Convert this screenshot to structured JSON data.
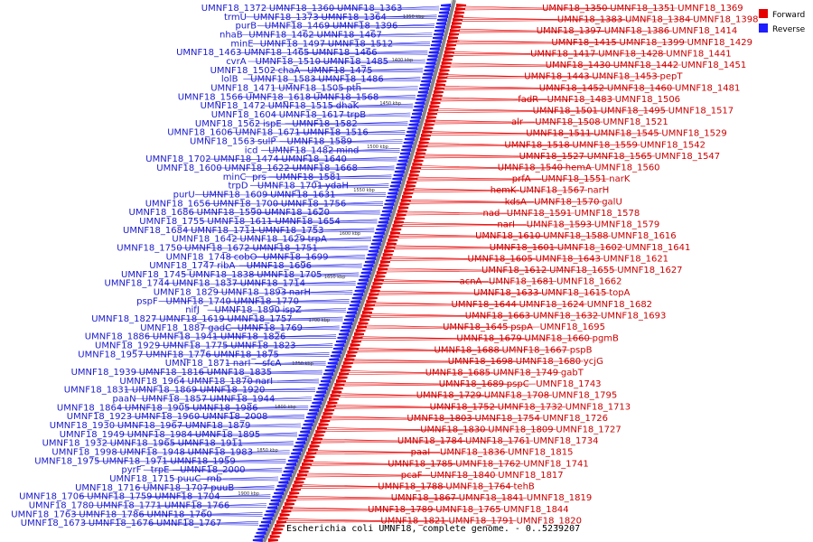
{
  "caption": "Escherichia coli UMNF18, complete genome. - 0..5239207",
  "legend": [
    {
      "label": "Forward",
      "color": "#e60000"
    },
    {
      "label": "Reverse",
      "color": "#1e1eff"
    }
  ],
  "kbp_ticks": [
    "1350 kbp",
    "1400 kbp",
    "1450 kbp",
    "1500 kbp",
    "1550 kbp",
    "1600 kbp",
    "1650 kbp",
    "1700 kbp",
    "1750 kbp",
    "1800 kbp",
    "1850 kbp",
    "1900 kbp"
  ],
  "forward_labels": [
    "UMNF18_1350",
    "UMNF18_1351",
    "UMNF18_1369",
    "UMNF18_1383",
    "UMNF18_1384",
    "UMNF18_1398",
    "UMNF18_1397",
    "UMNF18_1386",
    "UMNF18_1414",
    "UMNF18_1415",
    "UMNF18_1399",
    "UMNF18_1429",
    "UMNF18_1417",
    "UMNF18_1428",
    "UMNF18_1441",
    "UMNF18_1430",
    "UMNF18_1442",
    "UMNF18_1451",
    "UMNF18_1443",
    "UMNF18_1453",
    "pepT",
    "UMNF18_1452",
    "UMNF18_1460",
    "UMNF18_1481",
    "fadR",
    "UMNF18_1483",
    "UMNF18_1506",
    "UMNF18_1501",
    "UMNF18_1495",
    "UMNF18_1517",
    "alr",
    "UMNF18_1508",
    "UMNF18_1521",
    "UMNF18_1511",
    "UMNF18_1545",
    "UMNF18_1529",
    "UMNF18_1518",
    "UMNF18_1559",
    "UMNF18_1542",
    "UMNF18_1527",
    "UMNF18_1565",
    "UMNF18_1547",
    "UMNF18_1540",
    "hemA",
    "UMNF18_1560",
    "prfA",
    "UMNF18_1551",
    "narK",
    "hemK",
    "UMNF18_1567",
    "narH",
    "kdsA",
    "UMNF18_1570",
    "galU",
    "nad",
    "UMNF18_1591",
    "UMNF18_1578",
    "narI",
    "UMNF18_1593",
    "UMNF18_1579",
    "UMNF18_1610",
    "UMNF18_1588",
    "UMNF18_1616",
    "UMNF18_1601",
    "UMNF18_1602",
    "UMNF18_1641",
    "UMNF18_1605",
    "UMNF18_1643",
    "UMNF18_1621",
    "UMNF18_1612",
    "UMNF18_1655",
    "UMNF18_1627",
    "acnA",
    "UMNF18_1681",
    "UMNF18_1662",
    "UMNF18_1633",
    "UMNF18_1615",
    "topA",
    "UMNF18_1644",
    "UMNF18_1624",
    "UMNF18_1682",
    "UMNF18_1663",
    "UMNF18_1632",
    "UMNF18_1693",
    "UMNF18_1645",
    "pspA",
    "UMNF18_1695",
    "UMNF18_1679",
    "UMNF18_1660",
    "pgmB",
    "UMNF18_1688",
    "UMNF18_1667",
    "pspB",
    "UMNF18_1698",
    "UMNF18_1680",
    "ycjG",
    "UMNF18_1685",
    "UMNF18_1749",
    "gabT",
    "UMNF18_1689",
    "pspC",
    "UMNF18_1743",
    "UMNF18_1729",
    "UMNF18_1708",
    "UMNF18_1795",
    "UMNF18_1752",
    "UMNF18_1732",
    "UMNF18_1713",
    "UMNF18_1803",
    "UMNF18_1754",
    "UMNF18_1726",
    "UMNF18_1830",
    "UMNF18_1809",
    "UMNF18_1727",
    "UMNF18_1784",
    "UMNF18_1761",
    "UMNF18_1734",
    "paaI",
    "UMNF18_1836",
    "UMNF18_1815",
    "UMNF18_1785",
    "UMNF18_1762",
    "UMNF18_1741",
    "pcaF",
    "UMNF18_1840",
    "UMNF18_1817",
    "UMNF18_1788",
    "UMNF18_1764",
    "tehB",
    "UMNF18_1867",
    "UMNF18_1841",
    "UMNF18_1819",
    "UMNF18_1789",
    "UMNF18_1765",
    "UMNF18_1844",
    "UMNF18_1821",
    "UMNF18_1791",
    "UMNF18_1820"
  ],
  "reverse_labels": [
    "UMNF18_1363",
    "UMNF18_1360",
    "UMNF18_1372",
    "UMNF18_1364",
    "UMNF18_1373",
    "trmU",
    "UMNF18_1396",
    "UMNF18_1469",
    "purB",
    "UMNF18_1467",
    "UMNF18_1462",
    "nhaB",
    "UMNF18_1512",
    "UMNF18_1497",
    "minE",
    "UMNF18_1466",
    "UMNF18_1465",
    "UMNF18_1463",
    "UMNF18_1485",
    "UMNF18_1510",
    "cvrA",
    "UMNF18_1475",
    "chaA",
    "UMNF18_1502",
    "UMNF18_1486",
    "UMNF18_1583",
    "lolB",
    "pth",
    "UMNF18_1505",
    "UMNF18_1471",
    "UMNF18_1568",
    "UMNF18_1618",
    "UMNF18_1566",
    "dhaK",
    "UMNF18_1515",
    "UMNF18_1472",
    "trpB",
    "UMNF18_1617",
    "UMNF18_1604",
    "UMNF18_1582",
    "ispE",
    "UMNF18_1562",
    "UMNF18_1516",
    "UMNF18_1671",
    "UMNF18_1606",
    "UMNF18_1589",
    "sulP",
    "UMNF18_1563",
    "mind",
    "UMNF18_1482",
    "icd",
    "UMNF18_1640",
    "UMNF18_1474",
    "UMNF18_1702",
    "UMNF18_1668",
    "UMNF18_1622",
    "UMNF18_1600",
    "UMNF18_1581",
    "prs",
    "minC",
    "ydaH",
    "UMNF18_1701",
    "trpD",
    "UMNF18_1631",
    "UMNF18_1609",
    "purU",
    "UMNF18_1756",
    "UMNF18_1700",
    "UMNF18_1656",
    "UMNF18_1620",
    "UMNF18_1590",
    "UMNF18_1686",
    "UMNF18_1654",
    "UMNF18_1611",
    "UMNF18_1755",
    "UMNF18_1753",
    "UMNF18_1711",
    "UMNF18_1684",
    "trpA",
    "UMNF18_1629",
    "UMNF18_1642",
    "UMNF18_1751",
    "UMNF18_1672",
    "UMNF18_1750",
    "UMNF18_1699",
    "cobO",
    "UMNF18_1748",
    "UMNF18_1696",
    "ribA",
    "UMNF18_1747",
    "UMNF18_1705",
    "UMNF18_1838",
    "UMNF18_1745",
    "UMNF18_1714",
    "UMNF18_1837",
    "UMNF18_1744",
    "narH",
    "UMNF18_1893",
    "UMNF18_1829",
    "UMNF18_1770",
    "UMNF18_1740",
    "pspF",
    "ispZ",
    "UMNF18_1890",
    "nifJ",
    "UMNF18_1757",
    "UMNF18_1619",
    "UMNF18_1827",
    "UMNF18_1769",
    "gadC",
    "UMNF18_1887",
    "UMNF18_1826",
    "UMNF18_1941",
    "UMNF18_1886",
    "UMNF18_1823",
    "UMNF18_1775",
    "UMNF18_1929",
    "UMNF18_1875",
    "UMNF18_1776",
    "UMNF18_1957",
    "sfcA",
    "narI",
    "UMNF18_1871",
    "UMNF18_1835",
    "UMNF18_1816",
    "UMNF18_1939",
    "narI",
    "UMNF18_1870",
    "UMNF18_1964",
    "UMNF18_1920",
    "UMNF18_1869",
    "UMNF18_1831",
    "UMNF18_1944",
    "UMNF18_1857",
    "paaN",
    "UMNF18_1986",
    "UMNF18_1905",
    "UMNF18_1864",
    "UMNF18_2008",
    "UMNF18_1960",
    "UMNF18_1923",
    "UMNF18_1879",
    "UMNF18_1967",
    "UMNF18_1930",
    "UMNF18_1895",
    "UMNF18_1984",
    "UMNF18_1949",
    "UMNF18_1911",
    "UMNF18_1965",
    "UMNF18_1932",
    "UMNF18_1983",
    "UMNF18_1948",
    "UMNF18_1998",
    "UMNF18_1959",
    "UMNF18_1971",
    "UMNF18_1975",
    "UMNF18_2000",
    "trpE",
    "pyrF",
    "rnb",
    "puuC",
    "UMNF18_1715",
    "puuB",
    "UMNF18_1707",
    "UMNF18_1716",
    "UMNF18_1704",
    "UMNF18_1759",
    "UMNF18_1706",
    "UMNF18_1766",
    "UMNF18_1771",
    "UMNF18_1780",
    "UMNF18_1760",
    "UMNF18_1786",
    "UMNF18_1763",
    "UMNF18_1767",
    "UMNF18_1676",
    "UMNF18_1673"
  ]
}
